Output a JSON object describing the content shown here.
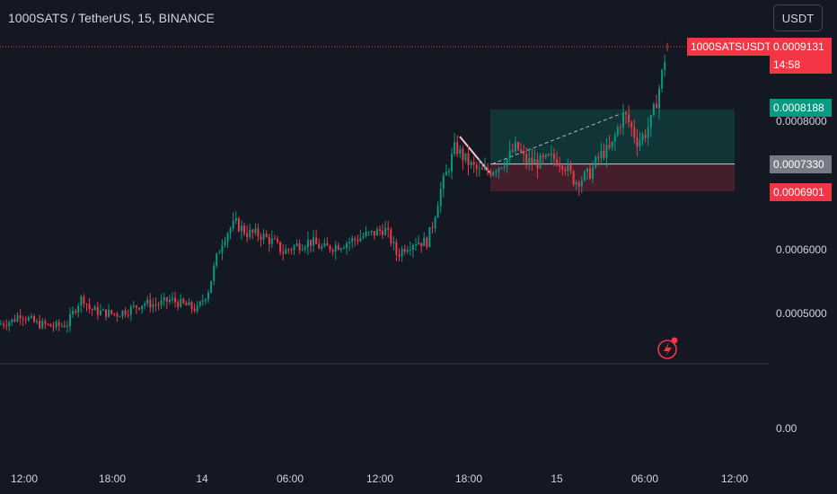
{
  "header": {
    "title": "1000SATS / TetherUS, 15, BINANCE",
    "currency": "USDT"
  },
  "price_labels": {
    "symbol": "1000SATSUSDT",
    "last_price": "0.0009131",
    "countdown": "14:58",
    "target": "0.0008188",
    "entry": "0.0007330",
    "stop": "0.0006901"
  },
  "colors": {
    "up": "#089981",
    "down": "#f23645",
    "last": "#f23645",
    "target_zone": "#089981",
    "stop_zone": "#f23645",
    "entry_label": "#787b86"
  },
  "chart_data": {
    "type": "candlestick",
    "title": "1000SATS / TetherUS, 15, BINANCE",
    "y_ticks": [
      "0.0005000",
      "0.0006000",
      "0.0008000"
    ],
    "volume_pane_tick": "0.00",
    "x_ticks": [
      "12:00",
      "18:00",
      "14",
      "06:00",
      "12:00",
      "18:00",
      "15",
      "06:00",
      "12:00"
    ],
    "ylim": [
      0.00043,
      0.00094
    ],
    "long_position": {
      "entry": 0.000733,
      "target": 0.0008188,
      "stop": 0.0006901
    },
    "last_price": 0.0009131,
    "close_path": [
      [
        0,
        0.000482
      ],
      [
        15,
        0.000488
      ],
      [
        22,
        0.000498
      ],
      [
        40,
        0.000483
      ],
      [
        60,
        0.000478
      ],
      [
        75,
        0.000482
      ],
      [
        85,
        0.00051
      ],
      [
        92,
        0.000525
      ],
      [
        100,
        0.000505
      ],
      [
        115,
        0.0005
      ],
      [
        130,
        0.000498
      ],
      [
        145,
        0.000505
      ],
      [
        160,
        0.000515
      ],
      [
        175,
        0.000512
      ],
      [
        190,
        0.00052
      ],
      [
        205,
        0.000512
      ],
      [
        220,
        0.000505
      ],
      [
        232,
        0.000535
      ],
      [
        240,
        0.00058
      ],
      [
        248,
        0.000615
      ],
      [
        255,
        0.00063
      ],
      [
        262,
        0.00064
      ],
      [
        275,
        0.000625
      ],
      [
        290,
        0.000622
      ],
      [
        305,
        0.00061
      ],
      [
        315,
        0.000595
      ],
      [
        330,
        0.000605
      ],
      [
        345,
        0.000612
      ],
      [
        360,
        0.0006
      ],
      [
        375,
        0.000605
      ],
      [
        390,
        0.000612
      ],
      [
        405,
        0.00062
      ],
      [
        418,
        0.000625
      ],
      [
        428,
        0.000632
      ],
      [
        436,
        0.000612
      ],
      [
        442,
        0.00059
      ],
      [
        450,
        0.000602
      ],
      [
        462,
        0.000612
      ],
      [
        475,
        0.00061
      ],
      [
        482,
        0.00064
      ],
      [
        490,
        0.00069
      ],
      [
        500,
        0.00073
      ],
      [
        507,
        0.00076
      ],
      [
        515,
        0.000745
      ],
      [
        525,
        0.00073
      ],
      [
        535,
        0.00072
      ],
      [
        545,
        0.000722
      ],
      [
        555,
        0.00073
      ],
      [
        565,
        0.000742
      ],
      [
        575,
        0.00076
      ],
      [
        585,
        0.000738
      ],
      [
        600,
        0.000735
      ],
      [
        615,
        0.000742
      ],
      [
        625,
        0.000738
      ],
      [
        632,
        0.000725
      ],
      [
        640,
        0.000705
      ],
      [
        650,
        0.000712
      ],
      [
        658,
        0.00072
      ],
      [
        665,
        0.00074
      ],
      [
        672,
        0.000752
      ],
      [
        680,
        0.000755
      ],
      [
        688,
        0.00079
      ],
      [
        695,
        0.000812
      ],
      [
        703,
        0.00079
      ],
      [
        710,
        0.000768
      ],
      [
        718,
        0.00078
      ],
      [
        725,
        0.0008
      ],
      [
        732,
        0.000838
      ],
      [
        738,
        0.00088
      ],
      [
        742,
        0.000913
      ]
    ]
  }
}
